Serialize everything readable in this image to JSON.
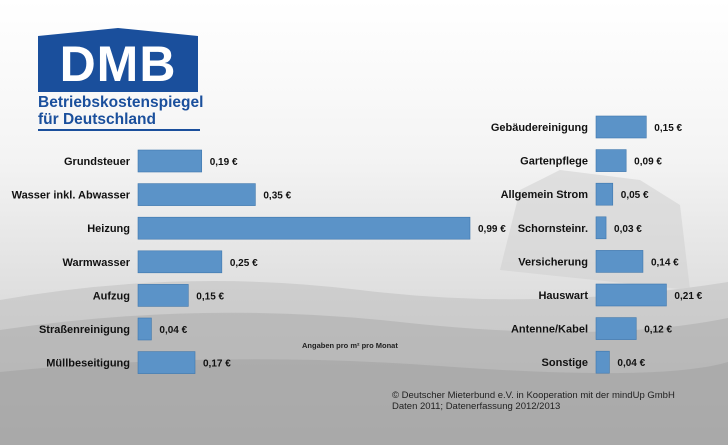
{
  "logo": {
    "abbr": "DMB",
    "line1": "Betriebskostenspiegel",
    "line2": "für Deutschland"
  },
  "colors": {
    "bar": "#5b93c8",
    "bar_edge": "#3f77ad",
    "brand_blue": "#1a4f9c",
    "text": "#111111"
  },
  "chart_data": [
    {
      "type": "bar",
      "orientation": "horizontal",
      "title": "",
      "xlabel": "",
      "ylabel": "",
      "xlim": [
        0,
        0.99
      ],
      "grid": false,
      "categories": [
        "Grundsteuer",
        "Wasser inkl. Abwasser",
        "Heizung",
        "Warmwasser",
        "Aufzug",
        "Straßenreinigung",
        "Müllbeseitigung"
      ],
      "values": [
        0.19,
        0.35,
        0.99,
        0.25,
        0.15,
        0.04,
        0.17
      ],
      "labels": [
        "0,19 €",
        "0,35 €",
        "0,99 €",
        "0,25 €",
        "0,15 €",
        "0,04 €",
        "0,17 €"
      ]
    },
    {
      "type": "bar",
      "orientation": "horizontal",
      "title": "",
      "xlabel": "",
      "ylabel": "",
      "xlim": [
        0,
        0.99
      ],
      "grid": false,
      "categories": [
        "Gebäudereinigung",
        "Gartenpflege",
        "Allgemein Strom",
        "Schornsteinr.",
        "Versicherung",
        "Hauswart",
        "Antenne/Kabel",
        "Sonstige"
      ],
      "values": [
        0.15,
        0.09,
        0.05,
        0.03,
        0.14,
        0.21,
        0.12,
        0.04
      ],
      "labels": [
        "0,15 €",
        "0,09 €",
        "0,05 €",
        "0,03 €",
        "0,14 €",
        "0,21 €",
        "0,12 €",
        "0,04 €"
      ]
    }
  ],
  "unit_note": "Angaben pro m² pro Monat",
  "source": {
    "line1": "© Deutscher Mieterbund e.V. in Kooperation mit der mindUp GmbH",
    "line2": "Daten 2011; Datenerfassung 2012/2013"
  }
}
